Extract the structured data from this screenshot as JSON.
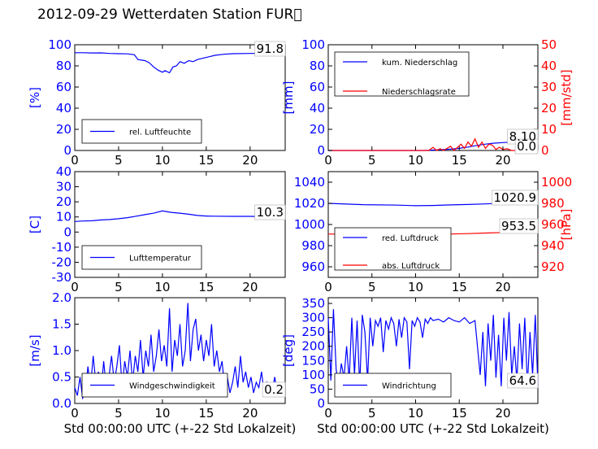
{
  "page": {
    "title": "2012-09-29 Wetterdaten Station FUR\u0000"
  },
  "colors": {
    "primary": "#0000ff",
    "secondary": "#ff0000",
    "axis": "#000000"
  },
  "chart_data": [
    {
      "type": "line",
      "xlabel": "",
      "ylabel": "[%]",
      "xlim": [
        0,
        24
      ],
      "ylim": [
        0,
        100
      ],
      "xticks": [
        0,
        5,
        10,
        15,
        20
      ],
      "yticks": [
        0,
        20,
        40,
        60,
        80,
        100
      ],
      "current_value": "91.8",
      "legend_position": "lower-left",
      "series": [
        {
          "name": "rel. Luftfeuchte",
          "color": "#0000ff",
          "x": [
            0,
            1,
            2,
            3,
            4,
            5,
            6,
            6.8,
            7.2,
            8,
            8.5,
            9,
            9.5,
            10,
            10.3,
            10.8,
            11.2,
            11.6,
            12,
            12.5,
            13,
            13.5,
            14,
            15,
            16,
            17,
            18,
            20,
            22,
            24
          ],
          "y": [
            92.5,
            92.5,
            92.2,
            92.3,
            91.8,
            91.5,
            91.4,
            90.5,
            86,
            85,
            83,
            79,
            76,
            74,
            75.5,
            73.5,
            79,
            80,
            84,
            82.5,
            85,
            84,
            86,
            88,
            90,
            91,
            91.5,
            91.8,
            91.9,
            91.8
          ]
        }
      ]
    },
    {
      "type": "line",
      "xlabel": "",
      "ylabel": "[mm]",
      "y2label": "[mm/std]",
      "xlim": [
        0,
        24
      ],
      "ylim": [
        0,
        100
      ],
      "y2lim": [
        0,
        50
      ],
      "xticks": [
        0,
        5,
        10,
        15,
        20
      ],
      "yticks": [
        0,
        20,
        40,
        60,
        80,
        100
      ],
      "y2ticks": [
        0,
        10,
        20,
        30,
        40,
        50
      ],
      "current_values": [
        "8.10",
        "0.0"
      ],
      "legend_position": "upper-left",
      "series": [
        {
          "name": "kum. Niederschlag",
          "color": "#0000ff",
          "axis": "left",
          "x": [
            0,
            11,
            12,
            13,
            14,
            15,
            16,
            17,
            18,
            19,
            20,
            21,
            22,
            24
          ],
          "y": [
            0,
            0,
            0.4,
            0.8,
            1.2,
            2,
            3.2,
            4.8,
            6,
            6.9,
            7.5,
            7.9,
            8.1,
            8.1
          ]
        },
        {
          "name": "Niederschlagsrate",
          "color": "#ff0000",
          "axis": "right",
          "x": [
            0,
            11,
            11.5,
            12,
            12.4,
            12.8,
            13.2,
            13.6,
            14,
            14.4,
            14.8,
            15.2,
            15.6,
            16,
            16.4,
            16.8,
            17.2,
            17.6,
            18,
            18.4,
            18.8,
            19.2,
            19.6,
            20,
            20.5,
            21,
            22,
            24
          ],
          "y": [
            0,
            0,
            0,
            1.5,
            0,
            0.8,
            0,
            1,
            2,
            0,
            1.5,
            3,
            1,
            4,
            2,
            5.5,
            1.5,
            4,
            1,
            3,
            2.5,
            0.5,
            1.5,
            0.5,
            0.8,
            0,
            0,
            0
          ]
        }
      ]
    },
    {
      "type": "line",
      "xlabel": "",
      "ylabel": "[C]",
      "xlim": [
        0,
        24
      ],
      "ylim": [
        -30,
        40
      ],
      "xticks": [
        0,
        5,
        10,
        15,
        20
      ],
      "yticks": [
        -30,
        -20,
        -10,
        0,
        10,
        20,
        30,
        40
      ],
      "current_value": "10.3",
      "legend_position": "lower-left",
      "series": [
        {
          "name": "Lufttemperatur",
          "color": "#0000ff",
          "x": [
            0,
            1,
            2,
            3,
            4,
            5,
            6,
            7,
            8,
            9,
            10,
            11,
            12,
            13,
            14,
            15,
            16,
            18,
            20,
            22,
            24
          ],
          "y": [
            7,
            7.3,
            7.5,
            8,
            8.3,
            8.8,
            9.5,
            10.5,
            11.5,
            12.5,
            14,
            13,
            12.5,
            11.8,
            11,
            10.6,
            10.5,
            10.4,
            10.4,
            10.3,
            10.3
          ]
        }
      ]
    },
    {
      "type": "line",
      "xlabel": "",
      "ylabel": "",
      "y2label": "[hPa]",
      "xlim": [
        0,
        24
      ],
      "ylim": [
        950,
        1050
      ],
      "y2lim": [
        910,
        1010
      ],
      "xticks": [
        0,
        5,
        10,
        15,
        20
      ],
      "yticks": [
        960,
        980,
        1000,
        1020,
        1040
      ],
      "y2ticks": [
        920,
        940,
        960,
        980,
        1000
      ],
      "current_values": [
        "1020.9",
        "953.5"
      ],
      "legend_position": "lower-left",
      "series": [
        {
          "name": "red. Luftdruck",
          "color": "#0000ff",
          "axis": "left",
          "x": [
            0,
            4,
            8,
            10,
            12,
            14,
            16,
            18,
            20,
            22,
            24
          ],
          "y": [
            1020,
            1018.8,
            1018.3,
            1017.8,
            1018,
            1018.5,
            1018.9,
            1019.5,
            1020.2,
            1020.7,
            1020.9
          ]
        },
        {
          "name": "abs. Luftdruck",
          "color": "#ff0000",
          "axis": "right",
          "x": [
            0,
            4,
            8,
            10,
            12,
            14,
            16,
            18,
            20,
            22,
            24
          ],
          "y": [
            951,
            950.8,
            950.6,
            950.5,
            950.7,
            951,
            951.4,
            951.9,
            952.5,
            953.1,
            953.5
          ]
        }
      ]
    },
    {
      "type": "line",
      "xlabel": "Std 00:00:00 UTC (+-22 Std Lokalzeit)",
      "ylabel": "[m/s]",
      "xlim": [
        0,
        24
      ],
      "ylim": [
        0,
        2.0
      ],
      "xticks": [
        0,
        5,
        10,
        15,
        20
      ],
      "yticks": [
        0.0,
        0.5,
        1.0,
        1.5,
        2.0
      ],
      "current_value": "0.2",
      "legend_position": "lower-center",
      "series": [
        {
          "name": "Windgeschwindigkeit",
          "color": "#0000ff",
          "x": [
            0,
            0.3,
            0.6,
            0.9,
            1.2,
            1.5,
            1.8,
            2.1,
            2.4,
            2.7,
            3,
            3.3,
            3.6,
            3.9,
            4.2,
            4.5,
            4.8,
            5.1,
            5.4,
            5.7,
            6,
            6.3,
            6.6,
            6.9,
            7.2,
            7.5,
            7.8,
            8.1,
            8.4,
            8.7,
            9,
            9.3,
            9.6,
            9.9,
            10.2,
            10.5,
            10.8,
            11.1,
            11.4,
            11.7,
            12,
            12.3,
            12.6,
            12.9,
            13.2,
            13.5,
            13.8,
            14.1,
            14.4,
            14.7,
            15,
            15.3,
            15.6,
            15.9,
            16.2,
            16.5,
            16.8,
            17.1,
            17.4,
            17.7,
            18,
            18.3,
            18.6,
            18.9,
            19.2,
            19.5,
            19.8,
            20.1,
            20.4,
            20.7,
            21,
            21.3,
            21.6,
            21.9,
            22.2,
            22.5,
            22.8,
            23.1,
            23.4,
            23.7,
            24
          ],
          "y": [
            0.3,
            0.15,
            0.5,
            0.1,
            0.2,
            0.7,
            0.3,
            0.9,
            0.4,
            0.6,
            0.2,
            0.8,
            0.3,
            0.5,
            0.9,
            0.4,
            0.7,
            1.1,
            0.3,
            0.8,
            0.5,
            1.0,
            0.4,
            0.9,
            0.6,
            1.2,
            0.5,
            1.0,
            0.7,
            1.3,
            0.6,
            0.9,
            1.4,
            0.8,
            1.1,
            0.7,
            1.8,
            0.6,
            1.2,
            0.9,
            1.5,
            0.7,
            1.0,
            1.9,
            0.8,
            1.4,
            1.6,
            1.0,
            1.3,
            0.8,
            1.2,
            0.9,
            1.5,
            0.7,
            1.0,
            0.6,
            0.8,
            0.3,
            0.5,
            0.2,
            0.4,
            0.7,
            0.3,
            0.9,
            0.4,
            0.6,
            0.3,
            0.5,
            0.2,
            0.4,
            0.3,
            0.6,
            0.2,
            0.4,
            0.3,
            0.2,
            0.5,
            0.2,
            0.3,
            0.2,
            0.2
          ]
        }
      ]
    },
    {
      "type": "line",
      "xlabel": "Std 00:00:00 UTC (+-22 Std Lokalzeit)",
      "ylabel": "[deg]",
      "xlim": [
        0,
        24
      ],
      "ylim": [
        0,
        370
      ],
      "xticks": [
        0,
        5,
        10,
        15,
        20
      ],
      "yticks": [
        0,
        50,
        100,
        150,
        200,
        250,
        300,
        350
      ],
      "current_value": "64.6",
      "legend_position": "lower-left",
      "series": [
        {
          "name": "Windrichtung",
          "color": "#0000ff",
          "x": [
            0,
            0.3,
            0.6,
            0.9,
            1.2,
            1.5,
            1.8,
            2.1,
            2.4,
            2.7,
            3.0,
            3.3,
            3.6,
            3.9,
            4.2,
            4.5,
            4.8,
            5.1,
            5.4,
            5.7,
            6.0,
            6.3,
            6.6,
            6.9,
            7.2,
            7.5,
            7.8,
            8.1,
            8.4,
            8.7,
            9.0,
            9.3,
            9.6,
            9.9,
            10.2,
            10.5,
            10.8,
            11.1,
            11.4,
            11.7,
            12.0,
            12.6,
            13.2,
            13.8,
            14.4,
            15.0,
            15.6,
            16.2,
            16.8,
            17.4,
            17.7,
            18.0,
            18.3,
            18.6,
            18.9,
            19.2,
            19.5,
            19.8,
            20.1,
            20.4,
            20.7,
            21.0,
            21.3,
            21.6,
            21.9,
            22.2,
            22.5,
            22.8,
            23.1,
            23.4,
            23.7,
            24.0
          ],
          "y": [
            300,
            80,
            330,
            120,
            60,
            140,
            90,
            200,
            80,
            300,
            100,
            290,
            60,
            310,
            250,
            80,
            300,
            200,
            290,
            270,
            300,
            180,
            290,
            260,
            300,
            280,
            200,
            295,
            230,
            300,
            285,
            120,
            290,
            270,
            300,
            285,
            230,
            295,
            280,
            300,
            290,
            295,
            285,
            300,
            290,
            285,
            300,
            280,
            290,
            100,
            250,
            60,
            280,
            150,
            310,
            90,
            240,
            60,
            300,
            150,
            320,
            100,
            200,
            80,
            280,
            120,
            300,
            60,
            250,
            100,
            310,
            64.6
          ]
        }
      ]
    }
  ]
}
